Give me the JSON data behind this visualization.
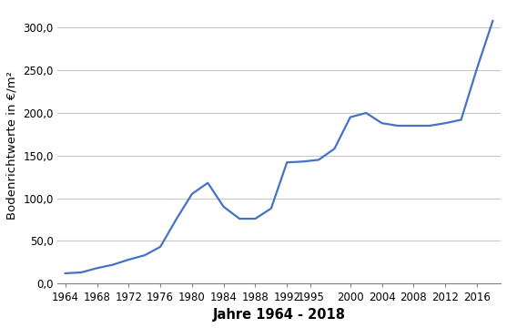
{
  "years": [
    1964,
    1966,
    1968,
    1970,
    1972,
    1974,
    1976,
    1978,
    1980,
    1982,
    1984,
    1986,
    1988,
    1990,
    1992,
    1994,
    1996,
    1998,
    2000,
    2002,
    2004,
    2006,
    2008,
    2010,
    2012,
    2014,
    2016,
    2018
  ],
  "values": [
    12,
    13,
    18,
    22,
    28,
    33,
    43,
    75,
    105,
    118,
    90,
    76,
    76,
    88,
    142,
    143,
    145,
    158,
    195,
    200,
    188,
    185,
    185,
    185,
    188,
    192,
    252,
    308
  ],
  "line_color": "#4472C4",
  "line_width": 1.6,
  "ylabel": "Bodenrichtwerte in €/m²",
  "xlabel": "Jahre 1964 - 2018",
  "ylim": [
    0,
    325
  ],
  "yticks": [
    0,
    50,
    100,
    150,
    200,
    250,
    300
  ],
  "ytick_labels": [
    "0,0",
    "50,0",
    "100,0",
    "150,0",
    "200,0",
    "250,0",
    "300,0"
  ],
  "xticks": [
    1964,
    1968,
    1972,
    1976,
    1980,
    1984,
    1988,
    1992,
    1995,
    2000,
    2004,
    2008,
    2012,
    2016
  ],
  "xlim": [
    1963,
    2019
  ],
  "grid_color": "#C8C8C8",
  "background_color": "#FFFFFF",
  "tick_label_fontsize": 8.5,
  "ylabel_fontsize": 9.5,
  "xlabel_fontsize": 10.5,
  "xlabel_fontweight": "bold"
}
